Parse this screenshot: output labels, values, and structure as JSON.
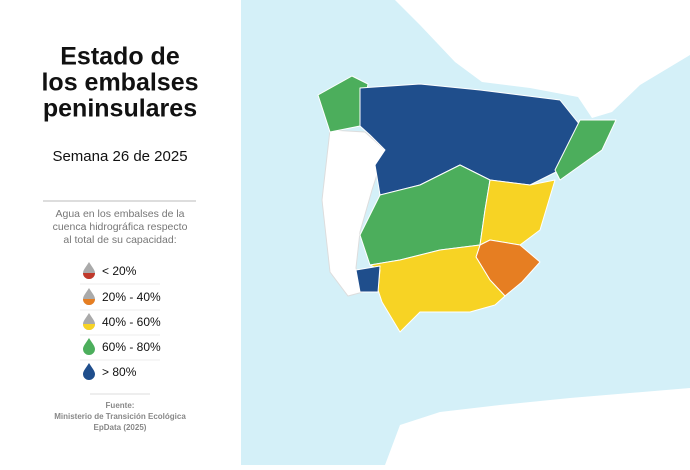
{
  "header": {
    "title_lines": [
      "Estado de",
      "los embalses",
      "peninsulares"
    ],
    "subtitle": "Semana 26 de 2025"
  },
  "legend": {
    "heading_lines": [
      "Agua en los embalses de la",
      "cuenca hidrográfica respecto",
      "al total de su capacidad:"
    ],
    "items": [
      {
        "label": "< 20%",
        "color": "#c0392b"
      },
      {
        "label": "20% - 40%",
        "color": "#e67e22"
      },
      {
        "label": "40% - 60%",
        "color": "#f7d324"
      },
      {
        "label": "60% - 80%",
        "color": "#4cae5c"
      },
      {
        "label": "> 80%",
        "color": "#1f4e8c"
      }
    ]
  },
  "source": {
    "lines": [
      "Fuente:",
      "Ministerio de Transición Ecológica",
      "EpData (2025)"
    ]
  }
}
